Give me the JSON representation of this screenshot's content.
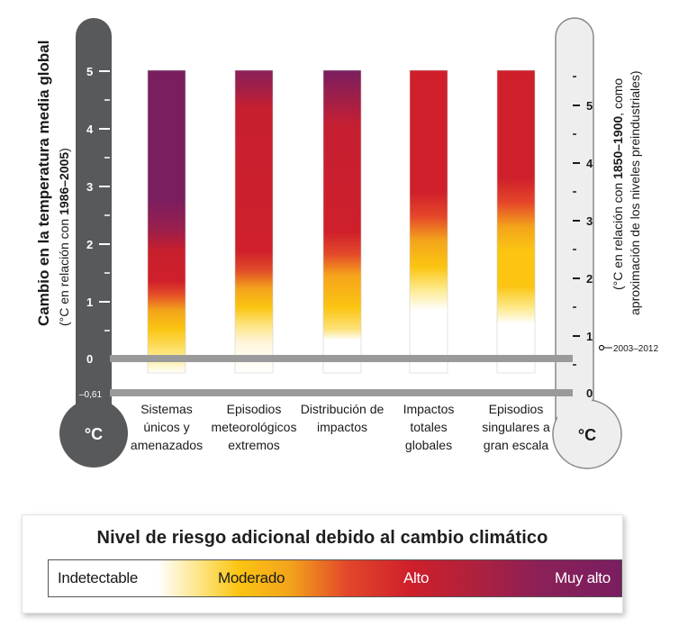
{
  "left_axis": {
    "title": "Cambio en la temperatura media global",
    "subtitle_prefix": "(°C en relación con ",
    "subtitle_bold": "1986–2005",
    "subtitle_suffix": ")",
    "ticks": [
      "5",
      "4",
      "3",
      "2",
      "1",
      "0",
      "–0,61"
    ],
    "unit": "°C"
  },
  "right_axis": {
    "line1_prefix": "(°C en relación con ",
    "line1_bold": "1850–1900",
    "line1_suffix": ", como",
    "line2": "aproximación de los niveles preindustriales)",
    "ticks": [
      "5",
      "4",
      "3",
      "2",
      "1",
      "0"
    ],
    "marker_label": "2003–2012",
    "unit": "°C"
  },
  "categories": [
    {
      "label_lines": [
        "Sistemas",
        "únicos y",
        "amenazados"
      ]
    },
    {
      "label_lines": [
        "Episodios",
        "meteorológicos",
        "extremos"
      ]
    },
    {
      "label_lines": [
        "Distribución de",
        "impactos"
      ]
    },
    {
      "label_lines": [
        "Impactos",
        "totales",
        "globales"
      ]
    },
    {
      "label_lines": [
        "Episodios",
        "singulares a",
        "gran escala"
      ]
    }
  ],
  "chart_data": {
    "type": "heatmap",
    "categories": [
      "Sistemas únicos y amenazados",
      "Episodios meteorológicos extremos",
      "Distribución de impactos",
      "Impactos totales globales",
      "Episodios singulares a gran escala"
    ],
    "ylim": [
      -0.61,
      5
    ],
    "color_scale": [
      {
        "name": "Indetectable",
        "color": "#ffffff"
      },
      {
        "name": "Moderado",
        "color": "#fbc512"
      },
      {
        "name": "Alto",
        "color": "#cf1f2b"
      },
      {
        "name": "Muy alto",
        "color": "#7a1e60"
      }
    ],
    "series": [
      {
        "stops": [
          {
            "t": -0.61,
            "color": "#ffffff"
          },
          {
            "t": -0.3,
            "color": "#fde98a"
          },
          {
            "t": 0.2,
            "color": "#fbc512"
          },
          {
            "t": 0.55,
            "color": "#f3a41b"
          },
          {
            "t": 0.85,
            "color": "#e34b28"
          },
          {
            "t": 1.1,
            "color": "#cf1f2b"
          },
          {
            "t": 1.65,
            "color": "#c81f2d"
          },
          {
            "t": 2.05,
            "color": "#9a1f4c"
          },
          {
            "t": 2.6,
            "color": "#7a1e60"
          },
          {
            "t": 5.0,
            "color": "#7a1e60"
          }
        ]
      },
      {
        "stops": [
          {
            "t": -0.61,
            "color": "#ffffff"
          },
          {
            "t": -0.05,
            "color": "#fff6dc"
          },
          {
            "t": 0.3,
            "color": "#fde27a"
          },
          {
            "t": 0.6,
            "color": "#fbc512"
          },
          {
            "t": 0.95,
            "color": "#f3a41b"
          },
          {
            "t": 1.3,
            "color": "#e04a2a"
          },
          {
            "t": 1.65,
            "color": "#cf1f2b"
          },
          {
            "t": 4.3,
            "color": "#c71f30"
          },
          {
            "t": 4.75,
            "color": "#9a1f4c"
          },
          {
            "t": 5.0,
            "color": "#8a2058"
          }
        ]
      },
      {
        "stops": [
          {
            "t": -0.61,
            "color": "#ffffff"
          },
          {
            "t": 0.0,
            "color": "#ffffff"
          },
          {
            "t": 0.2,
            "color": "#fde27a"
          },
          {
            "t": 0.6,
            "color": "#fbc512"
          },
          {
            "t": 1.2,
            "color": "#f5a31b"
          },
          {
            "t": 1.6,
            "color": "#e3482a"
          },
          {
            "t": 2.0,
            "color": "#cf1f2b"
          },
          {
            "t": 4.0,
            "color": "#c51f32"
          },
          {
            "t": 4.55,
            "color": "#9a1f4c"
          },
          {
            "t": 5.0,
            "color": "#7a1e60"
          }
        ]
      },
      {
        "stops": [
          {
            "t": -0.61,
            "color": "#ffffff"
          },
          {
            "t": 0.55,
            "color": "#ffffff"
          },
          {
            "t": 0.95,
            "color": "#fde98a"
          },
          {
            "t": 1.35,
            "color": "#fbc512"
          },
          {
            "t": 1.85,
            "color": "#f3a41b"
          },
          {
            "t": 2.3,
            "color": "#e5462a"
          },
          {
            "t": 2.75,
            "color": "#cf1f2b"
          },
          {
            "t": 5.0,
            "color": "#cf1f2b"
          }
        ]
      },
      {
        "stops": [
          {
            "t": -0.61,
            "color": "#ffffff"
          },
          {
            "t": 0.3,
            "color": "#ffffff"
          },
          {
            "t": 0.6,
            "color": "#fde98a"
          },
          {
            "t": 1.0,
            "color": "#fbc512"
          },
          {
            "t": 1.65,
            "color": "#fbc512"
          },
          {
            "t": 2.1,
            "color": "#f3a41b"
          },
          {
            "t": 2.55,
            "color": "#e5462a"
          },
          {
            "t": 3.0,
            "color": "#cf1f2b"
          },
          {
            "t": 5.0,
            "color": "#cf1f2b"
          }
        ]
      }
    ]
  },
  "legend": {
    "title": "Nivel de riesgo adicional debido al cambio climático",
    "labels": [
      "Indetectable",
      "Moderado",
      "Alto",
      "Muy alto"
    ]
  }
}
